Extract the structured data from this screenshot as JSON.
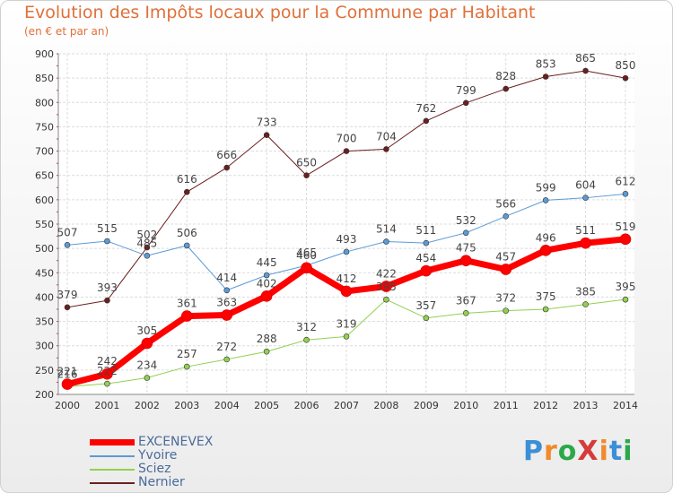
{
  "title": "Evolution des Impôts locaux pour la Commune par Habitant",
  "subtitle": "(en € et par an)",
  "logo": {
    "text": "ProXiti",
    "colors": [
      "#3b8fd6",
      "#f08a2a",
      "#2aa84a",
      "#d63b3b",
      "#f08a2a",
      "#3b8fd6",
      "#2aa84a"
    ]
  },
  "chart_data": {
    "type": "line",
    "title": "Evolution des Impôts locaux pour la Commune par Habitant",
    "subtitle": "(en € et par an)",
    "xlabel": "",
    "ylabel": "",
    "x": [
      2000,
      2001,
      2002,
      2003,
      2004,
      2005,
      2006,
      2007,
      2008,
      2009,
      2010,
      2011,
      2012,
      2013,
      2014
    ],
    "ylim": [
      200,
      900
    ],
    "yticks": [
      200,
      250,
      300,
      350,
      400,
      450,
      500,
      550,
      600,
      650,
      700,
      750,
      800,
      850,
      900
    ],
    "grid": true,
    "legend_position": "bottom-left",
    "series": [
      {
        "name": "Nernier",
        "color": "#6b1f1f",
        "width": 1,
        "values": [
          379,
          393,
          502,
          616,
          666,
          733,
          650,
          700,
          704,
          762,
          799,
          828,
          853,
          865,
          850
        ]
      },
      {
        "name": "Yvoire",
        "color": "#5b9bd5",
        "width": 1,
        "values": [
          507,
          515,
          485,
          506,
          414,
          445,
          465,
          493,
          514,
          511,
          532,
          566,
          599,
          604,
          612
        ]
      },
      {
        "name": "Sciez",
        "color": "#92d050",
        "width": 1,
        "values": [
          216,
          222,
          234,
          257,
          272,
          288,
          312,
          319,
          395,
          357,
          367,
          372,
          375,
          385,
          395
        ]
      },
      {
        "name": "EXCENEVEX",
        "color": "#ff0000",
        "width": 7,
        "values": [
          221,
          242,
          305,
          361,
          363,
          402,
          460,
          412,
          422,
          454,
          475,
          457,
          496,
          511,
          519
        ]
      }
    ],
    "legend_order": [
      "EXCENEVEX",
      "Yvoire",
      "Sciez",
      "Nernier"
    ]
  }
}
